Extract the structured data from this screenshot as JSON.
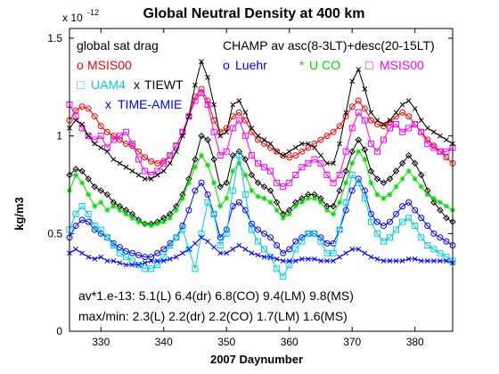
{
  "chart_data": {
    "type": "line",
    "title": "Global Neutral Density at 400 km",
    "xlabel": "2007 Daynumber",
    "ylabel": "kg/m3",
    "y_exponent_label": "x 10",
    "y_exponent_power": "-12",
    "xlim": [
      325,
      386
    ],
    "ylim": [
      0,
      1.55
    ],
    "xticks": [
      330,
      340,
      350,
      360,
      370,
      380
    ],
    "yticks": [
      0,
      0.5,
      1,
      1.5
    ],
    "yticklabels": [
      "0",
      "0.5",
      "1",
      "1.5"
    ],
    "grid": false,
    "annotations": {
      "top_left": "global sat drag",
      "top_right": "CHAMP av asc(8-3LT)+desc(20-15LT)"
    },
    "legend": [
      {
        "marker": "o",
        "label": "MSIS00",
        "color": "#ff0000"
      },
      {
        "marker": "o",
        "label": "Luehr",
        "color": "#0000ff"
      },
      {
        "marker": "*",
        "label": "U CO",
        "color": "#00e000"
      },
      {
        "marker": "□",
        "label": "MSIS00",
        "color": "#ff00ff"
      },
      {
        "marker": "□",
        "label": "UAM4",
        "color": "#00d0e0"
      },
      {
        "marker": "x",
        "label": "TIEWT",
        "color": "#000000"
      },
      {
        "marker": "x",
        "label": "TIME-AMIE",
        "color": "#0000ff"
      }
    ],
    "stats_line1": "av*1.e-13: 5.1(L) 6.4(dr) 6.8(CO) 9.4(LM) 9.8(MS)",
    "stats_line2": "max/min: 2.3(L) 2.2(dr) 2.2(CO) 1.7(LM) 1.6(MS)",
    "x": [
      325,
      326,
      327,
      328,
      329,
      330,
      331,
      332,
      333,
      334,
      335,
      336,
      337,
      338,
      339,
      340,
      341,
      342,
      343,
      344,
      345,
      346,
      347,
      348,
      349,
      350,
      351,
      352,
      353,
      354,
      355,
      356,
      357,
      358,
      359,
      360,
      361,
      362,
      363,
      364,
      365,
      366,
      367,
      368,
      369,
      370,
      371,
      372,
      373,
      374,
      375,
      376,
      377,
      378,
      379,
      380,
      381,
      382,
      383,
      384,
      385,
      386
    ],
    "series": [
      {
        "name": "global sat drag",
        "color": "#000000",
        "marker": "diamond",
        "values": [
          0.8,
          0.83,
          0.82,
          0.78,
          0.74,
          0.72,
          0.7,
          0.66,
          0.64,
          0.62,
          0.6,
          0.57,
          0.55,
          0.55,
          0.56,
          0.58,
          0.6,
          0.64,
          0.7,
          0.78,
          0.88,
          1.0,
          0.98,
          0.88,
          0.74,
          0.76,
          0.9,
          0.92,
          0.88,
          0.8,
          0.76,
          0.74,
          0.72,
          0.66,
          0.6,
          0.62,
          0.66,
          0.68,
          0.7,
          0.7,
          0.68,
          0.64,
          0.64,
          0.72,
          0.82,
          0.92,
          0.98,
          0.93,
          0.82,
          0.78,
          0.76,
          0.78,
          0.82,
          0.86,
          0.9,
          0.86,
          0.8,
          0.72,
          0.66,
          0.62,
          0.58,
          0.56
        ]
      },
      {
        "name": "MSIS00",
        "color": "#ff0000",
        "marker": "circle",
        "values": [
          1.08,
          1.13,
          1.15,
          1.14,
          1.1,
          1.05,
          1.02,
          1.0,
          0.98,
          0.96,
          0.95,
          0.92,
          0.89,
          0.87,
          0.86,
          0.87,
          0.9,
          0.95,
          1.02,
          1.1,
          1.2,
          1.24,
          1.18,
          1.08,
          1.02,
          1.04,
          1.1,
          1.12,
          1.08,
          1.02,
          0.98,
          0.96,
          0.94,
          0.92,
          0.9,
          0.89,
          0.9,
          0.92,
          0.94,
          0.96,
          0.98,
          1.0,
          1.02,
          1.05,
          1.1,
          1.15,
          1.18,
          1.14,
          1.08,
          1.06,
          1.05,
          1.07,
          1.1,
          1.12,
          1.1,
          1.06,
          1.02,
          0.98,
          0.95,
          0.92,
          0.89,
          0.86
        ]
      },
      {
        "name": "Luehr",
        "color": "#0000ff",
        "marker": "circle",
        "values": [
          0.48,
          0.54,
          0.57,
          0.56,
          0.52,
          0.5,
          0.48,
          0.45,
          0.43,
          0.41,
          0.4,
          0.39,
          0.38,
          0.38,
          0.4,
          0.42,
          0.45,
          0.48,
          0.54,
          0.62,
          0.72,
          0.76,
          0.7,
          0.6,
          0.48,
          0.52,
          0.64,
          0.66,
          0.62,
          0.55,
          0.52,
          0.5,
          0.48,
          0.44,
          0.4,
          0.42,
          0.46,
          0.48,
          0.5,
          0.5,
          0.48,
          0.45,
          0.45,
          0.52,
          0.62,
          0.72,
          0.78,
          0.72,
          0.6,
          0.56,
          0.54,
          0.56,
          0.6,
          0.64,
          0.66,
          0.62,
          0.58,
          0.54,
          0.5,
          0.48,
          0.46,
          0.44
        ]
      },
      {
        "name": "U CO",
        "color": "#00e000",
        "marker": "star",
        "values": [
          0.72,
          0.8,
          0.76,
          0.7,
          0.64,
          0.66,
          0.62,
          0.64,
          0.62,
          0.6,
          0.58,
          0.56,
          0.55,
          0.54,
          0.55,
          0.56,
          0.58,
          0.62,
          0.68,
          0.76,
          0.84,
          0.9,
          0.85,
          0.76,
          0.64,
          0.68,
          0.82,
          0.86,
          0.8,
          0.72,
          0.69,
          0.68,
          0.66,
          0.62,
          0.58,
          0.6,
          0.64,
          0.66,
          0.68,
          0.68,
          0.66,
          0.62,
          0.6,
          0.66,
          0.76,
          0.86,
          0.92,
          0.88,
          0.76,
          0.7,
          0.68,
          0.7,
          0.74,
          0.78,
          0.82,
          0.78,
          0.74,
          0.7,
          0.68,
          0.66,
          0.64,
          0.62
        ]
      },
      {
        "name": "MSIS00",
        "color": "#ff00ff",
        "marker": "square",
        "values": [
          1.16,
          1.1,
          1.04,
          1.0,
          0.98,
          1.0,
          0.94,
          0.98,
          1.0,
          1.02,
          0.96,
          0.88,
          0.82,
          0.8,
          0.82,
          0.86,
          0.9,
          0.95,
          1.02,
          1.1,
          1.18,
          1.22,
          1.16,
          1.02,
          0.9,
          0.92,
          1.04,
          1.08,
          1.0,
          0.9,
          0.86,
          0.84,
          0.82,
          0.76,
          0.74,
          0.76,
          0.8,
          0.84,
          0.86,
          0.88,
          0.86,
          0.8,
          0.76,
          0.8,
          0.92,
          1.04,
          1.12,
          1.08,
          0.96,
          0.92,
          0.98,
          1.04,
          1.06,
          1.02,
          1.04,
          1.06,
          1.02,
          0.96,
          0.94,
          0.92,
          0.92,
          0.94
        ]
      },
      {
        "name": "UAM4",
        "color": "#00d0e0",
        "marker": "square",
        "values": [
          0.52,
          0.6,
          0.64,
          0.6,
          0.54,
          0.52,
          0.48,
          0.44,
          0.4,
          0.38,
          0.36,
          0.34,
          0.32,
          0.32,
          0.34,
          0.38,
          0.44,
          0.48,
          0.52,
          0.42,
          0.32,
          0.5,
          0.66,
          0.6,
          0.44,
          0.5,
          0.72,
          0.9,
          0.7,
          0.52,
          0.46,
          0.42,
          0.38,
          0.32,
          0.28,
          0.34,
          0.42,
          0.46,
          0.5,
          0.5,
          0.46,
          0.4,
          0.4,
          0.52,
          0.66,
          0.8,
          0.76,
          0.68,
          0.56,
          0.5,
          0.46,
          0.48,
          0.52,
          0.56,
          0.58,
          0.54,
          0.48,
          0.44,
          0.42,
          0.4,
          0.38,
          0.36
        ]
      },
      {
        "name": "TIEWT",
        "color": "#000000",
        "marker": "x",
        "values": [
          1.04,
          1.08,
          1.06,
          1.0,
          0.96,
          0.94,
          0.92,
          0.88,
          0.86,
          0.84,
          0.82,
          0.8,
          0.78,
          0.78,
          0.8,
          0.82,
          0.86,
          0.92,
          1.0,
          1.1,
          1.26,
          1.38,
          1.3,
          1.16,
          1.0,
          1.02,
          1.16,
          1.18,
          1.12,
          1.04,
          1.0,
          0.98,
          0.96,
          0.92,
          0.9,
          0.92,
          0.94,
          0.96,
          0.96,
          0.94,
          0.9,
          0.86,
          0.86,
          0.96,
          1.12,
          1.28,
          1.34,
          1.24,
          1.12,
          1.08,
          1.06,
          1.08,
          1.12,
          1.16,
          1.18,
          1.14,
          1.08,
          1.04,
          1.02,
          1.0,
          0.98,
          0.96
        ]
      },
      {
        "name": "TIME-AMIE",
        "color": "#0000ff",
        "marker": "x",
        "values": [
          0.4,
          0.42,
          0.4,
          0.38,
          0.37,
          0.38,
          0.36,
          0.36,
          0.35,
          0.34,
          0.34,
          0.34,
          0.35,
          0.36,
          0.36,
          0.36,
          0.37,
          0.38,
          0.4,
          0.42,
          0.45,
          0.48,
          0.46,
          0.43,
          0.4,
          0.4,
          0.42,
          0.44,
          0.42,
          0.4,
          0.39,
          0.38,
          0.38,
          0.37,
          0.36,
          0.36,
          0.36,
          0.37,
          0.37,
          0.37,
          0.36,
          0.36,
          0.36,
          0.38,
          0.4,
          0.42,
          0.42,
          0.4,
          0.38,
          0.37,
          0.36,
          0.36,
          0.36,
          0.36,
          0.37,
          0.37,
          0.36,
          0.36,
          0.36,
          0.36,
          0.36,
          0.35
        ]
      }
    ]
  }
}
